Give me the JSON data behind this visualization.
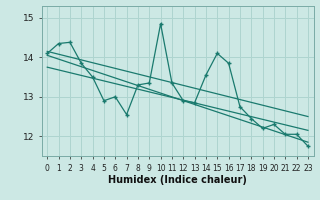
{
  "title": "",
  "xlabel": "Humidex (Indice chaleur)",
  "ylabel": "",
  "background_color": "#cce8e4",
  "plot_bg_color": "#cce8e4",
  "grid_color": "#aed4cf",
  "line_color": "#1a7a6e",
  "ylim": [
    11.5,
    15.3
  ],
  "xlim": [
    -0.5,
    23.5
  ],
  "yticks": [
    12,
    13,
    14,
    15
  ],
  "xticks": [
    0,
    1,
    2,
    3,
    4,
    5,
    6,
    7,
    8,
    9,
    10,
    11,
    12,
    13,
    14,
    15,
    16,
    17,
    18,
    19,
    20,
    21,
    22,
    23
  ],
  "line1_x": [
    0,
    1,
    2,
    3,
    4,
    5,
    6,
    7,
    8,
    9,
    10,
    11,
    12,
    13,
    14,
    15,
    16,
    17,
    18,
    19,
    20,
    21,
    22,
    23
  ],
  "line1_y": [
    14.1,
    14.35,
    14.38,
    13.85,
    13.5,
    12.9,
    13.0,
    12.55,
    13.3,
    13.35,
    14.85,
    13.35,
    12.9,
    12.85,
    13.55,
    14.1,
    13.85,
    12.75,
    12.45,
    12.2,
    12.3,
    12.05,
    12.05,
    11.75
  ],
  "trend1_x": [
    0,
    23
  ],
  "trend1_y": [
    14.15,
    12.5
  ],
  "trend2_x": [
    0,
    23
  ],
  "trend2_y": [
    14.05,
    11.85
  ],
  "trend3_x": [
    0,
    23
  ],
  "trend3_y": [
    13.75,
    12.15
  ]
}
